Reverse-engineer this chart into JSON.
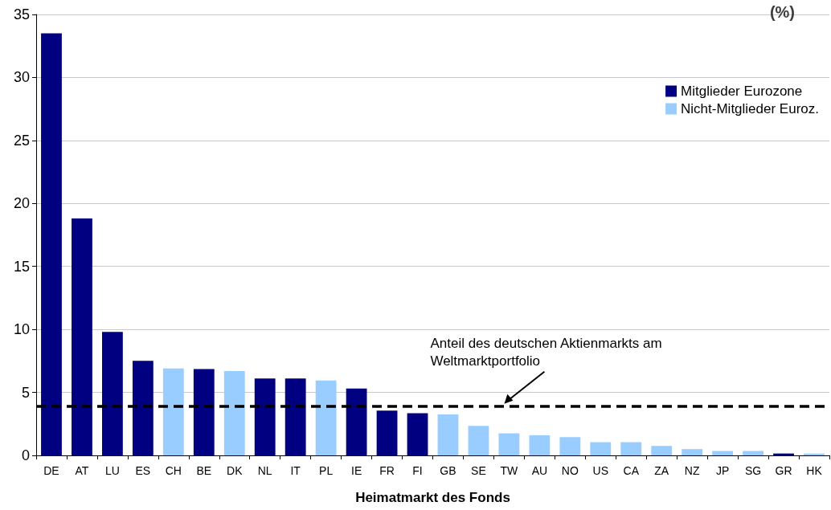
{
  "chart_data": {
    "type": "bar",
    "title": "(%)",
    "xlabel": "Heimatmarkt des Fonds",
    "categories": [
      "DE",
      "AT",
      "LU",
      "ES",
      "CH",
      "BE",
      "DK",
      "NL",
      "IT",
      "PL",
      "IE",
      "FR",
      "FI",
      "GB",
      "SE",
      "TW",
      "AU",
      "NO",
      "US",
      "CA",
      "ZA",
      "NZ",
      "JP",
      "SG",
      "GR",
      "HK"
    ],
    "series": [
      {
        "name": "Mitglieder Eurozone",
        "color": "#000080",
        "values": [
          33.5,
          18.8,
          9.8,
          7.5,
          null,
          6.85,
          null,
          6.1,
          6.1,
          null,
          5.3,
          3.55,
          3.35,
          null,
          null,
          null,
          null,
          null,
          null,
          null,
          null,
          null,
          null,
          null,
          0.15,
          null
        ]
      },
      {
        "name": "Nicht-Mitglieder Euroz.",
        "color": "#99ccff",
        "values": [
          null,
          null,
          null,
          null,
          6.9,
          null,
          6.7,
          null,
          null,
          5.95,
          null,
          null,
          null,
          3.25,
          2.35,
          1.75,
          1.6,
          1.45,
          1.05,
          1.05,
          0.75,
          0.5,
          0.35,
          0.35,
          null,
          0.15
        ]
      }
    ],
    "ref_lines": [
      {
        "axis": "y",
        "value": 3.9,
        "color": "#000000",
        "line_style": "dashed"
      }
    ],
    "annotations": [
      {
        "text": "Anteil des deutschen Aktienmarkts am Weltmarktportfolio",
        "x": "TW",
        "y": 3.9
      }
    ],
    "ylim": [
      0,
      35
    ],
    "yticks": [
      0,
      5,
      10,
      15,
      20,
      25,
      30,
      35
    ],
    "grid": "y",
    "legend": "top right"
  }
}
